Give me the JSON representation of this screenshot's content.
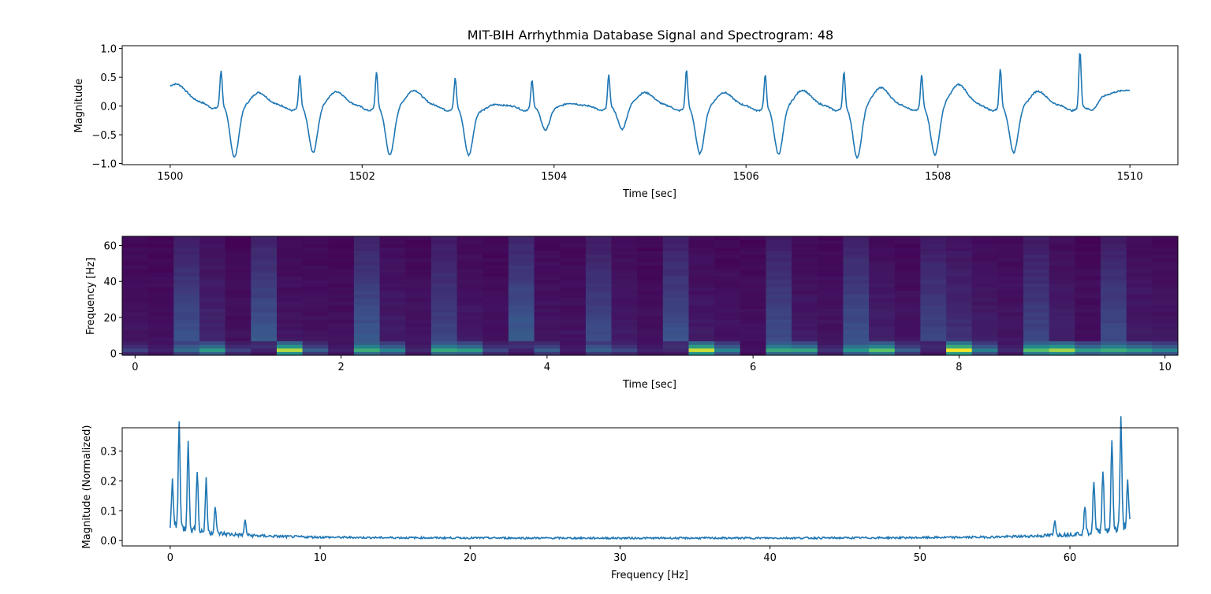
{
  "figure": {
    "title": "MIT-BIH Arrhythmia Database Signal and Spectrogram: 48",
    "line_color": "#1f77b4",
    "colormap": [
      "#440154",
      "#3b528b",
      "#21918c",
      "#5ec962",
      "#fde725"
    ]
  },
  "chart_data": [
    {
      "type": "line",
      "title": "MIT-BIH Arrhythmia Database Signal and Spectrogram: 48",
      "xlabel": "Time [sec]",
      "ylabel": "Magnitude",
      "xlim": [
        1499.5,
        1510.5
      ],
      "ylim": [
        -1.02,
        1.05
      ],
      "xticks": [
        1500,
        1502,
        1504,
        1506,
        1508,
        1510
      ],
      "xtick_labels": [
        "1500",
        "1502",
        "1504",
        "1506",
        "1508",
        "1510"
      ],
      "yticks": [
        -1.0,
        -0.5,
        0.0,
        0.5,
        1.0
      ],
      "ytick_labels": [
        "−1.0",
        "−0.5",
        "0.0",
        "0.5",
        "1.0"
      ],
      "series": [
        {
          "sampling_rate_hz": 128,
          "x_start": 1500,
          "x_end": 1510,
          "beats": [
            {
              "t": 1500.53,
              "r": 0.62,
              "s": -0.92,
              "t_wave": 0.26
            },
            {
              "t": 1501.35,
              "r": 0.56,
              "s": -0.83,
              "t_wave": 0.25
            },
            {
              "t": 1502.15,
              "r": 0.62,
              "s": -0.87,
              "t_wave": 0.28
            },
            {
              "t": 1502.97,
              "r": 0.51,
              "s": -0.85,
              "t_wave": 0.3
            },
            {
              "t": 1503.77,
              "r": 0.47,
              "s": -0.42,
              "t_wave": 0.04
            },
            {
              "t": 1504.57,
              "r": 0.56,
              "s": -0.42,
              "t_wave": 0.06
            },
            {
              "t": 1505.38,
              "r": 0.66,
              "s": -0.84,
              "t_wave": 0.25
            },
            {
              "t": 1506.2,
              "r": 0.57,
              "s": -0.85,
              "t_wave": 0.26
            },
            {
              "t": 1507.02,
              "r": 0.62,
              "s": -0.92,
              "t_wave": 0.3
            },
            {
              "t": 1507.83,
              "r": 0.57,
              "s": -0.87,
              "t_wave": 0.35
            },
            {
              "t": 1508.65,
              "r": 0.68,
              "s": -0.82,
              "t_wave": 0.4
            },
            {
              "t": 1509.48,
              "r": 0.97,
              "s": -0.16,
              "t_wave": 0.28
            }
          ],
          "start_value": 0.15,
          "end_value": 0.3
        }
      ]
    },
    {
      "type": "heatmap",
      "xlabel": "Time [sec]",
      "ylabel": "Frequency [Hz]",
      "xlim": [
        -0.125,
        10.125
      ],
      "ylim": [
        -1,
        65
      ],
      "xticks": [
        0,
        2,
        4,
        6,
        8,
        10
      ],
      "xtick_labels": [
        "0",
        "2",
        "4",
        "6",
        "8",
        "10"
      ],
      "yticks": [
        0,
        20,
        40,
        60
      ],
      "ytick_labels": [
        "0",
        "20",
        "40",
        "60"
      ],
      "segment_width_sec": 0.25,
      "frequency_bins_hz": [
        0,
        2,
        4,
        6,
        8,
        10,
        12,
        14,
        16,
        18,
        20,
        22,
        24,
        26,
        28,
        30,
        32,
        34,
        36,
        38,
        40,
        42,
        44,
        46,
        48,
        50,
        52,
        54,
        56,
        58,
        60,
        62,
        64
      ],
      "segment_times_sec": [
        0,
        0.25,
        0.5,
        0.75,
        1.0,
        1.25,
        1.5,
        1.75,
        2.0,
        2.25,
        2.5,
        2.75,
        3.0,
        3.25,
        3.5,
        3.75,
        4.0,
        4.25,
        4.5,
        4.75,
        5.0,
        5.25,
        5.5,
        5.75,
        6.0,
        6.25,
        6.5,
        6.75,
        7.0,
        7.25,
        7.5,
        7.75,
        8.0,
        8.25,
        8.5,
        8.75,
        9.0,
        9.25,
        9.5,
        9.75,
        10.0
      ],
      "band_intensity": {
        "segment_0_to_6hz": [
          0.2,
          0.1,
          0.35,
          0.55,
          0.2,
          0.1,
          0.88,
          0.3,
          0.1,
          0.62,
          0.45,
          0.12,
          0.6,
          0.55,
          0.22,
          0.1,
          0.3,
          0.08,
          0.3,
          0.22,
          0.1,
          0.12,
          0.92,
          0.45,
          0.05,
          0.6,
          0.58,
          0.15,
          0.52,
          0.72,
          0.3,
          0.1,
          0.98,
          0.42,
          0.12,
          0.7,
          0.85,
          0.55,
          0.62,
          0.55,
          0.45
        ],
        "segment_broadband": [
          0.06,
          0.05,
          0.26,
          0.12,
          0.05,
          0.28,
          0.07,
          0.06,
          0.05,
          0.28,
          0.09,
          0.06,
          0.22,
          0.08,
          0.05,
          0.3,
          0.07,
          0.06,
          0.24,
          0.08,
          0.05,
          0.26,
          0.08,
          0.06,
          0.05,
          0.24,
          0.08,
          0.06,
          0.26,
          0.1,
          0.06,
          0.22,
          0.15,
          0.09,
          0.07,
          0.22,
          0.1,
          0.05,
          0.24,
          0.09,
          0.07
        ]
      }
    },
    {
      "type": "line",
      "xlabel": "Frequency [Hz]",
      "ylabel": "Magnitude (Normalized)",
      "xlim": [
        -3.2,
        67.2
      ],
      "ylim": [
        -0.018,
        0.378
      ],
      "xticks": [
        0,
        10,
        20,
        30,
        40,
        50,
        60
      ],
      "xtick_labels": [
        "0",
        "10",
        "20",
        "30",
        "40",
        "50",
        "60"
      ],
      "yticks": [
        0.0,
        0.1,
        0.2,
        0.3
      ],
      "ytick_labels": [
        "0.0",
        "0.1",
        "0.2",
        "0.3"
      ],
      "series": [
        {
          "x_start": 0,
          "x_end": 64,
          "peaks_hz": [
            {
              "f": 0.15,
              "v": 0.14
            },
            {
              "f": 0.6,
              "v": 0.36
            },
            {
              "f": 1.2,
              "v": 0.305
            },
            {
              "f": 1.8,
              "v": 0.205
            },
            {
              "f": 2.4,
              "v": 0.175
            },
            {
              "f": 3.0,
              "v": 0.09
            },
            {
              "f": 5.0,
              "v": 0.05
            }
          ],
          "floor_value": 0.008,
          "symmetric_about_hz": 32.0
        }
      ]
    }
  ]
}
